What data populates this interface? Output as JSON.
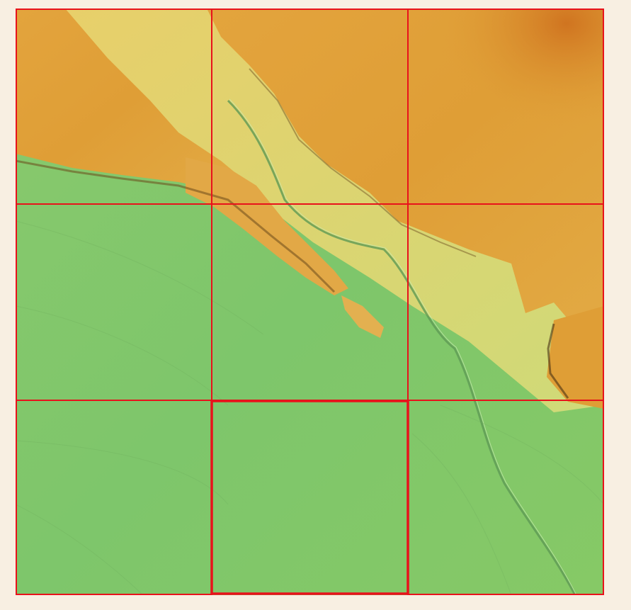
{
  "map": {
    "kind": "shaded-relief elevation raster",
    "palette": {
      "low": "#7fc770",
      "mid": "#d9dc6a",
      "high": "#e0a23a",
      "peak": "#d47a22",
      "grid": "#e8121b",
      "background": "#f8efe2"
    },
    "grid": {
      "rows": 3,
      "cols": 3,
      "selected_tile": {
        "row": 3,
        "col": 2
      }
    },
    "features": [
      "ridge-escarpment",
      "stream-channel",
      "plateau",
      "plain"
    ]
  }
}
